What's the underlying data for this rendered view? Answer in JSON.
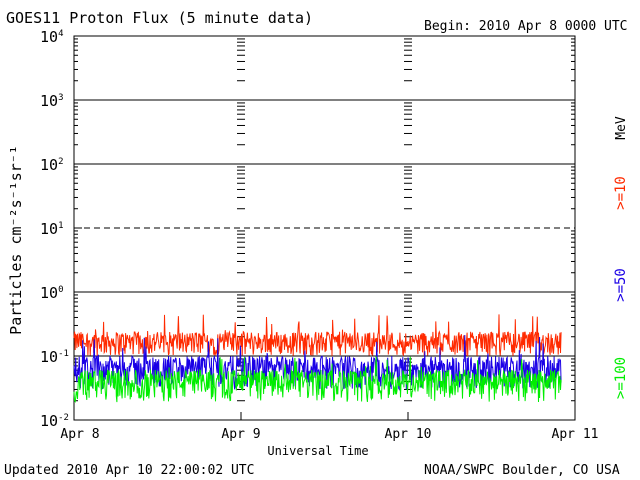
{
  "chart_data": {
    "type": "line",
    "title": "GOES11 Proton Flux (5 minute data)",
    "begin_label": "Begin: 2010 Apr 8 0000 UTC",
    "xlabel": "Universal Time",
    "ylabel": "Particles cm⁻²s⁻¹sr⁻¹",
    "y_scale": "log",
    "ylim": [
      0.01,
      10000
    ],
    "grid": true,
    "x_tick_labels": [
      "Apr 8",
      "Apr 9",
      "Apr 10",
      "Apr 11"
    ],
    "y_ticks": [
      {
        "base": "10",
        "exp": "-2"
      },
      {
        "base": "10",
        "exp": "-1"
      },
      {
        "base": "10",
        "exp": "0"
      },
      {
        "base": "10",
        "exp": "1"
      },
      {
        "base": "10",
        "exp": "2"
      },
      {
        "base": "10",
        "exp": "3"
      },
      {
        "base": "10",
        "exp": "4"
      }
    ],
    "unit_label": "MeV",
    "legend_placement": "right",
    "series": [
      {
        "name": ">=10",
        "color": "#ff2a00",
        "baseline": 0.17,
        "spread": 0.1,
        "peak": 0.45
      },
      {
        "name": ">=50",
        "color": "#1a00e6",
        "baseline": 0.065,
        "spread": 0.05,
        "peak": 0.22
      },
      {
        "name": ">=100",
        "color": "#00ee00",
        "baseline": 0.04,
        "spread": 0.03,
        "peak": 0.1
      }
    ],
    "x_range_days": [
      0,
      3
    ],
    "data_end_day": 2.92
  },
  "footer": {
    "updated": "Updated 2010 Apr 10 22:00:02 UTC",
    "source": "NOAA/SWPC Boulder, CO USA"
  }
}
